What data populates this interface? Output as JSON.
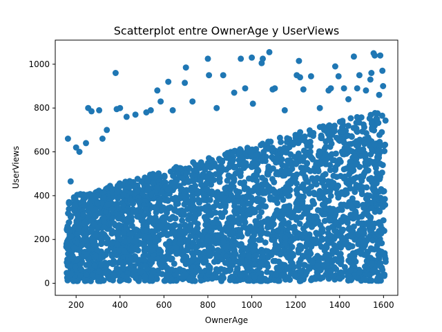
{
  "chart_data": {
    "type": "scatter",
    "title": "Scatterplot entre OwnerAge y UserViews",
    "xlabel": "OwnerAge",
    "ylabel": "UserViews",
    "xlim": [
      105,
      1665
    ],
    "ylim": [
      -55,
      1110
    ],
    "grid": false,
    "xticks": [
      200,
      400,
      600,
      800,
      1000,
      1200,
      1400,
      1600
    ],
    "yticks": [
      0,
      200,
      400,
      600,
      800,
      1000
    ],
    "marker_color": "#1f77b4",
    "series": [
      {
        "points": [
          [
            163,
            660
          ],
          [
            175,
            465
          ],
          [
            200,
            620
          ],
          [
            215,
            600
          ],
          [
            245,
            640
          ],
          [
            255,
            800
          ],
          [
            270,
            785
          ],
          [
            305,
            790
          ],
          [
            320,
            660
          ],
          [
            340,
            700
          ],
          [
            380,
            960
          ],
          [
            385,
            795
          ],
          [
            400,
            800
          ],
          [
            430,
            760
          ],
          [
            470,
            770
          ],
          [
            520,
            780
          ],
          [
            540,
            790
          ],
          [
            570,
            880
          ],
          [
            585,
            830
          ],
          [
            620,
            920
          ],
          [
            640,
            790
          ],
          [
            700,
            985
          ],
          [
            695,
            915
          ],
          [
            730,
            830
          ],
          [
            800,
            1025
          ],
          [
            805,
            950
          ],
          [
            840,
            800
          ],
          [
            870,
            950
          ],
          [
            920,
            870
          ],
          [
            950,
            1025
          ],
          [
            970,
            890
          ],
          [
            1000,
            1030
          ],
          [
            1005,
            820
          ],
          [
            1045,
            1005
          ],
          [
            1050,
            1025
          ],
          [
            1080,
            1055
          ],
          [
            1095,
            885
          ],
          [
            1105,
            890
          ],
          [
            1150,
            790
          ],
          [
            1205,
            950
          ],
          [
            1215,
            1015
          ],
          [
            1220,
            940
          ],
          [
            1235,
            885
          ],
          [
            1270,
            945
          ],
          [
            1310,
            800
          ],
          [
            1350,
            880
          ],
          [
            1360,
            890
          ],
          [
            1380,
            990
          ],
          [
            1395,
            945
          ],
          [
            1420,
            890
          ],
          [
            1440,
            840
          ],
          [
            1465,
            1035
          ],
          [
            1480,
            890
          ],
          [
            1490,
            950
          ],
          [
            1520,
            880
          ],
          [
            1540,
            930
          ],
          [
            1545,
            960
          ],
          [
            1555,
            1050
          ],
          [
            1560,
            1040
          ],
          [
            1585,
            1040
          ],
          [
            1595,
            970
          ],
          [
            1598,
            900
          ],
          [
            1572,
            15
          ],
          [
            1510,
            20
          ],
          [
            1450,
            60
          ],
          [
            1580,
            860
          ]
        ]
      }
    ]
  }
}
